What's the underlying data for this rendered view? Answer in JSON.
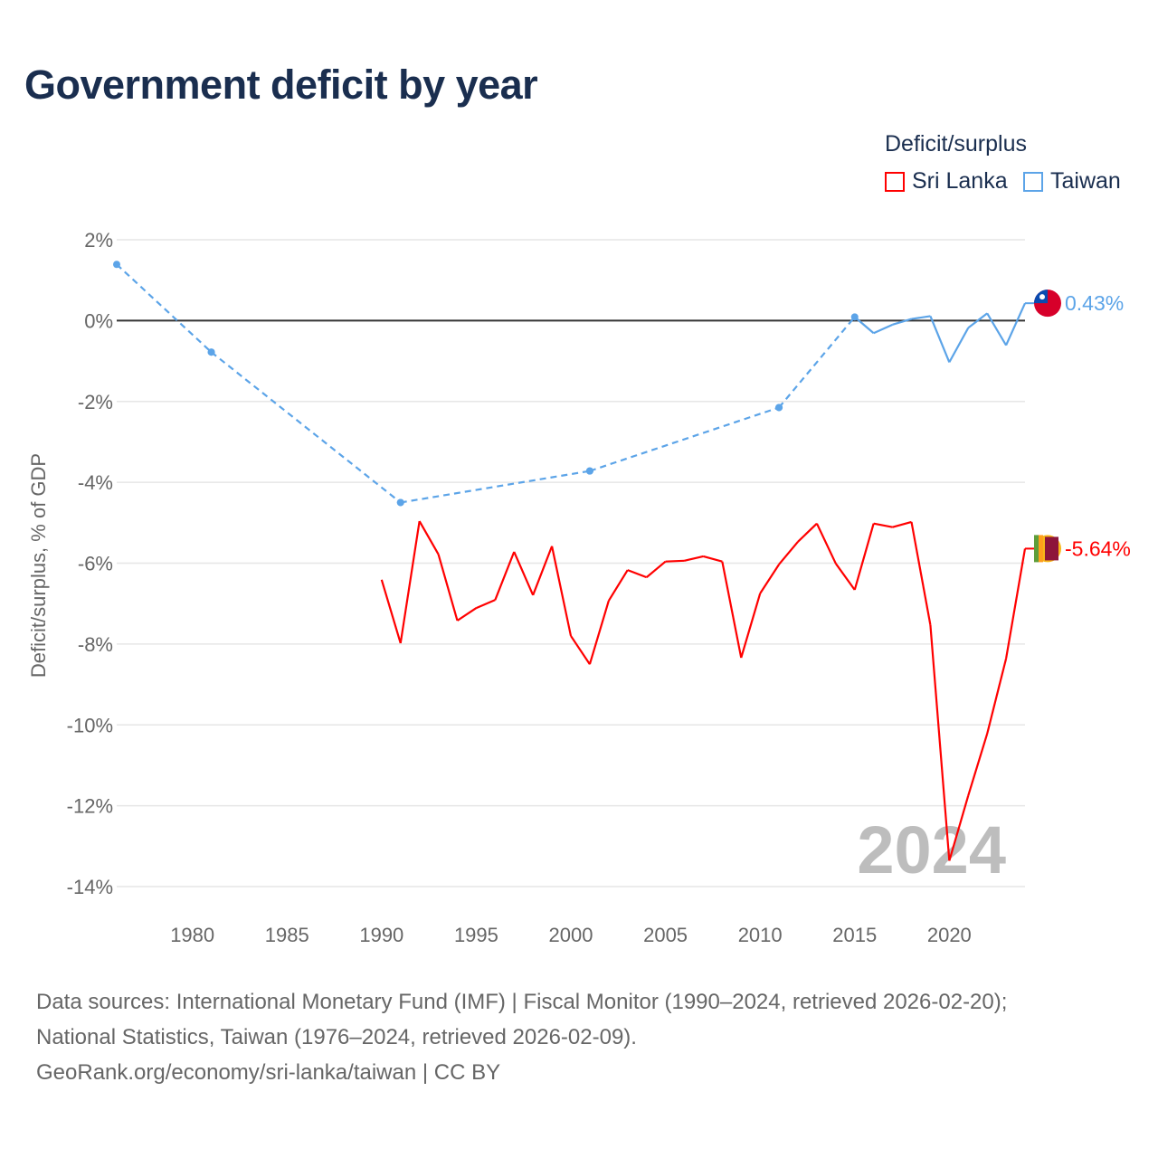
{
  "chart_data": {
    "type": "line",
    "title": "Government deficit by year",
    "ylabel": "Deficit/surplus, % of GDP",
    "xlabel": "",
    "ylim": [
      -14,
      2
    ],
    "xlim": [
      1976,
      2024
    ],
    "yticks": [
      2,
      0,
      -2,
      -4,
      -6,
      -8,
      -10,
      -12,
      -14
    ],
    "ytick_labels": [
      "2%",
      "0%",
      "-2%",
      "-4%",
      "-6%",
      "-8%",
      "-10%",
      "-12%",
      "-14%"
    ],
    "xticks": [
      1980,
      1985,
      1990,
      1995,
      2000,
      2005,
      2010,
      2015,
      2020
    ],
    "xtick_labels": [
      "1980",
      "1985",
      "1990",
      "1995",
      "2000",
      "2005",
      "2010",
      "2015",
      "2020"
    ],
    "legend_title": "Deficit/surplus",
    "legend_placement": "top-right",
    "year_watermark": "2024",
    "series": [
      {
        "name": "Sri Lanka",
        "color": "#ff0000",
        "end_label": "-5.64%",
        "x": [
          1990,
          1991,
          1992,
          1993,
          1994,
          1995,
          1996,
          1997,
          1998,
          1999,
          2000,
          2001,
          2002,
          2003,
          2004,
          2005,
          2006,
          2007,
          2008,
          2009,
          2010,
          2011,
          2012,
          2013,
          2014,
          2015,
          2016,
          2017,
          2018,
          2019,
          2020,
          2021,
          2022,
          2023,
          2024
        ],
        "values": [
          -6.41,
          -7.98,
          -4.96,
          -5.78,
          -7.42,
          -7.11,
          -6.91,
          -5.72,
          -6.79,
          -5.58,
          -7.8,
          -8.5,
          -6.93,
          -6.17,
          -6.35,
          -5.96,
          -5.94,
          -5.83,
          -5.96,
          -8.34,
          -6.75,
          -6.03,
          -5.47,
          -5.02,
          -6.01,
          -6.66,
          -5.02,
          -5.11,
          -4.98,
          -7.53,
          -13.36,
          -11.75,
          -10.22,
          -8.36,
          -5.64
        ]
      },
      {
        "name": "Taiwan",
        "color": "#5ca4e8",
        "end_label": "0.43%",
        "x": [
          1976,
          1981,
          1991,
          2001,
          2011,
          2015,
          2016,
          2017,
          2018,
          2019,
          2020,
          2021,
          2022,
          2023,
          2024
        ],
        "values": [
          1.39,
          -0.78,
          -4.5,
          -3.72,
          -2.15,
          0.09,
          -0.31,
          -0.1,
          0.04,
          0.11,
          -1.03,
          -0.18,
          0.18,
          -0.61,
          0.43
        ]
      }
    ]
  },
  "footer": {
    "line1": "Data sources: International Monetary Fund (IMF) | Fiscal Monitor (1990–2024, retrieved 2026-02-20);",
    "line2": "National Statistics, Taiwan (1976–2024, retrieved 2026-02-09).",
    "line3": "GeoRank.org/economy/sri-lanka/taiwan | CC BY"
  }
}
